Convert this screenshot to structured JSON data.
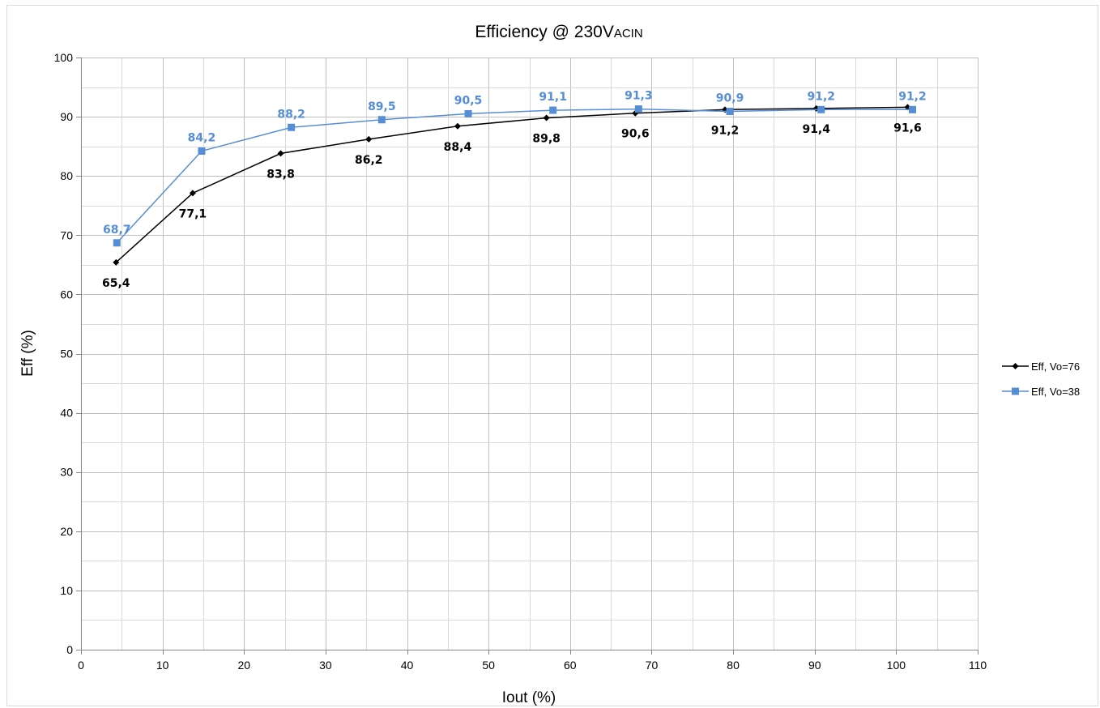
{
  "chart_data": {
    "type": "line",
    "title_main": "Efficiency @ 230V",
    "title_sub": "ACIN",
    "xlabel": "Iout (%)",
    "ylabel": "Eff (%)",
    "xlim": [
      0,
      110
    ],
    "ylim": [
      0,
      100
    ],
    "x_ticks": [
      "0",
      "10",
      "20",
      "30",
      "40",
      "50",
      "60",
      "70",
      "80",
      "90",
      "100",
      "110"
    ],
    "y_ticks": [
      "0",
      "10",
      "20",
      "30",
      "40",
      "50",
      "60",
      "70",
      "80",
      "90",
      "100"
    ],
    "x_major_step": 10,
    "y_major_step": 10,
    "x_minor_step": 5,
    "y_minor_step": 5,
    "grid": true,
    "legend_position": "right",
    "series": [
      {
        "name": "Eff, Vo=76",
        "color": "#000000",
        "marker": "diamond",
        "label_position": "below",
        "x": [
          4.3,
          13.7,
          24.5,
          35.3,
          46.2,
          57.1,
          68.0,
          79.0,
          90.2,
          101.4
        ],
        "y": [
          65.4,
          77.1,
          83.8,
          86.2,
          88.4,
          89.8,
          90.6,
          91.2,
          91.4,
          91.6
        ],
        "labels": [
          "65,4",
          "77,1",
          "83,8",
          "86,2",
          "88,4",
          "89,8",
          "90,6",
          "91,2",
          "91,4",
          "91,6"
        ]
      },
      {
        "name": "Eff, Vo=38",
        "color": "#558ed5",
        "marker": "square",
        "label_position": "above",
        "x": [
          4.4,
          14.8,
          25.8,
          36.9,
          47.5,
          57.9,
          68.4,
          79.6,
          90.8,
          102.0
        ],
        "y": [
          68.7,
          84.2,
          88.2,
          89.5,
          90.5,
          91.1,
          91.3,
          90.9,
          91.2,
          91.2
        ],
        "labels": [
          "68,7",
          "84,2",
          "88,2",
          "89,5",
          "90,5",
          "91,1",
          "91,3",
          "90,9",
          "91,2",
          "91,2"
        ]
      }
    ]
  }
}
